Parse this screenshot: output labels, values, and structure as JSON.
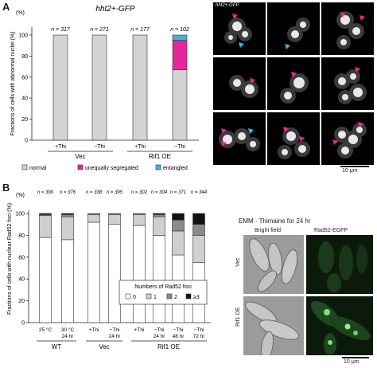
{
  "panel_a": {
    "letter": "A",
    "title": "hht2+-GFP",
    "ylabel": "Fractions of cells with abnormal nuclei (%)",
    "yunit": "(%)",
    "ticks": [
      "0",
      "20",
      "40",
      "60",
      "80",
      "100"
    ],
    "groups": [
      "Vec",
      "Rif1 OE"
    ],
    "legend": [
      "normal",
      "unequally segregated",
      "entangled"
    ],
    "colors": {
      "normal": "#d3d3d3",
      "unequal": "#e6279b",
      "entangled": "#35b6e0"
    },
    "micro_label": "hht2+-GFP",
    "scale": "10 μm"
  },
  "panel_b": {
    "letter": "B",
    "ylabel": "Fractions of cells with nuclear Rad52 foci (%)",
    "yunit": "(%)",
    "ticks": [
      "0",
      "20",
      "40",
      "60",
      "80",
      "100"
    ],
    "groups": [
      "WT",
      "Vec",
      "Rif1 OE"
    ],
    "legend_title": "Numbers of Rad52 foci",
    "legend": [
      "0",
      "1",
      "2",
      "≥3"
    ],
    "colors": {
      "c0": "#ffffff",
      "c1": "#cfcfcf",
      "c2": "#8a8a8a",
      "c3": "#111111"
    },
    "micro_title": "EMM - Thimaine for 24 hr",
    "col_labels": [
      "Bright field",
      "Rad52-EGFP"
    ],
    "row_labels": [
      "Vec",
      "Rif1 OE"
    ],
    "scale": "10 μm"
  },
  "chart_data": [
    {
      "type": "bar",
      "stacked": true,
      "title": "hht2+-GFP",
      "ylabel": "Fractions of cells with abnormal nuclei (%)",
      "ylim": [
        0,
        100
      ],
      "categories": [
        "+Thi",
        "−Thi",
        "+Thi",
        "−Thi"
      ],
      "n_labels": [
        "n = 317",
        "n = 271",
        "n = 177",
        "n = 102"
      ],
      "series": [
        {
          "name": "normal",
          "values": [
            100,
            100,
            100,
            67
          ]
        },
        {
          "name": "unequally segregated",
          "values": [
            0,
            0,
            0,
            28
          ]
        },
        {
          "name": "entangled",
          "values": [
            0,
            0,
            0,
            5
          ]
        }
      ]
    },
    {
      "type": "bar",
      "stacked": true,
      "ylabel": "Fractions of cells with nuclear Rad52 foci (%)",
      "ylim": [
        0,
        100
      ],
      "categories": [
        "25 °C",
        "30 °C",
        "+Thi",
        "−Thi",
        "+Thi",
        "−Thi",
        "−Thi",
        "−Thi"
      ],
      "sublabels": [
        "",
        "24 hr",
        "",
        "24 hr",
        "",
        "24 hr",
        "48 hr",
        "72 hr"
      ],
      "n_labels": [
        "n = 390",
        "n = 376",
        "n = 338",
        "n = 395",
        "n = 302",
        "n = 304",
        "n = 371",
        "n = 344"
      ],
      "series": [
        {
          "name": "0",
          "values": [
            78,
            76,
            92,
            90,
            89,
            80,
            62,
            55
          ]
        },
        {
          "name": "1",
          "values": [
            20,
            21,
            7,
            9,
            10,
            17,
            22,
            25
          ]
        },
        {
          "name": "2",
          "values": [
            1,
            2,
            1,
            1,
            1,
            2,
            10,
            10
          ]
        },
        {
          "name": "≥3",
          "values": [
            1,
            1,
            0,
            0,
            0,
            1,
            6,
            10
          ]
        }
      ]
    }
  ]
}
